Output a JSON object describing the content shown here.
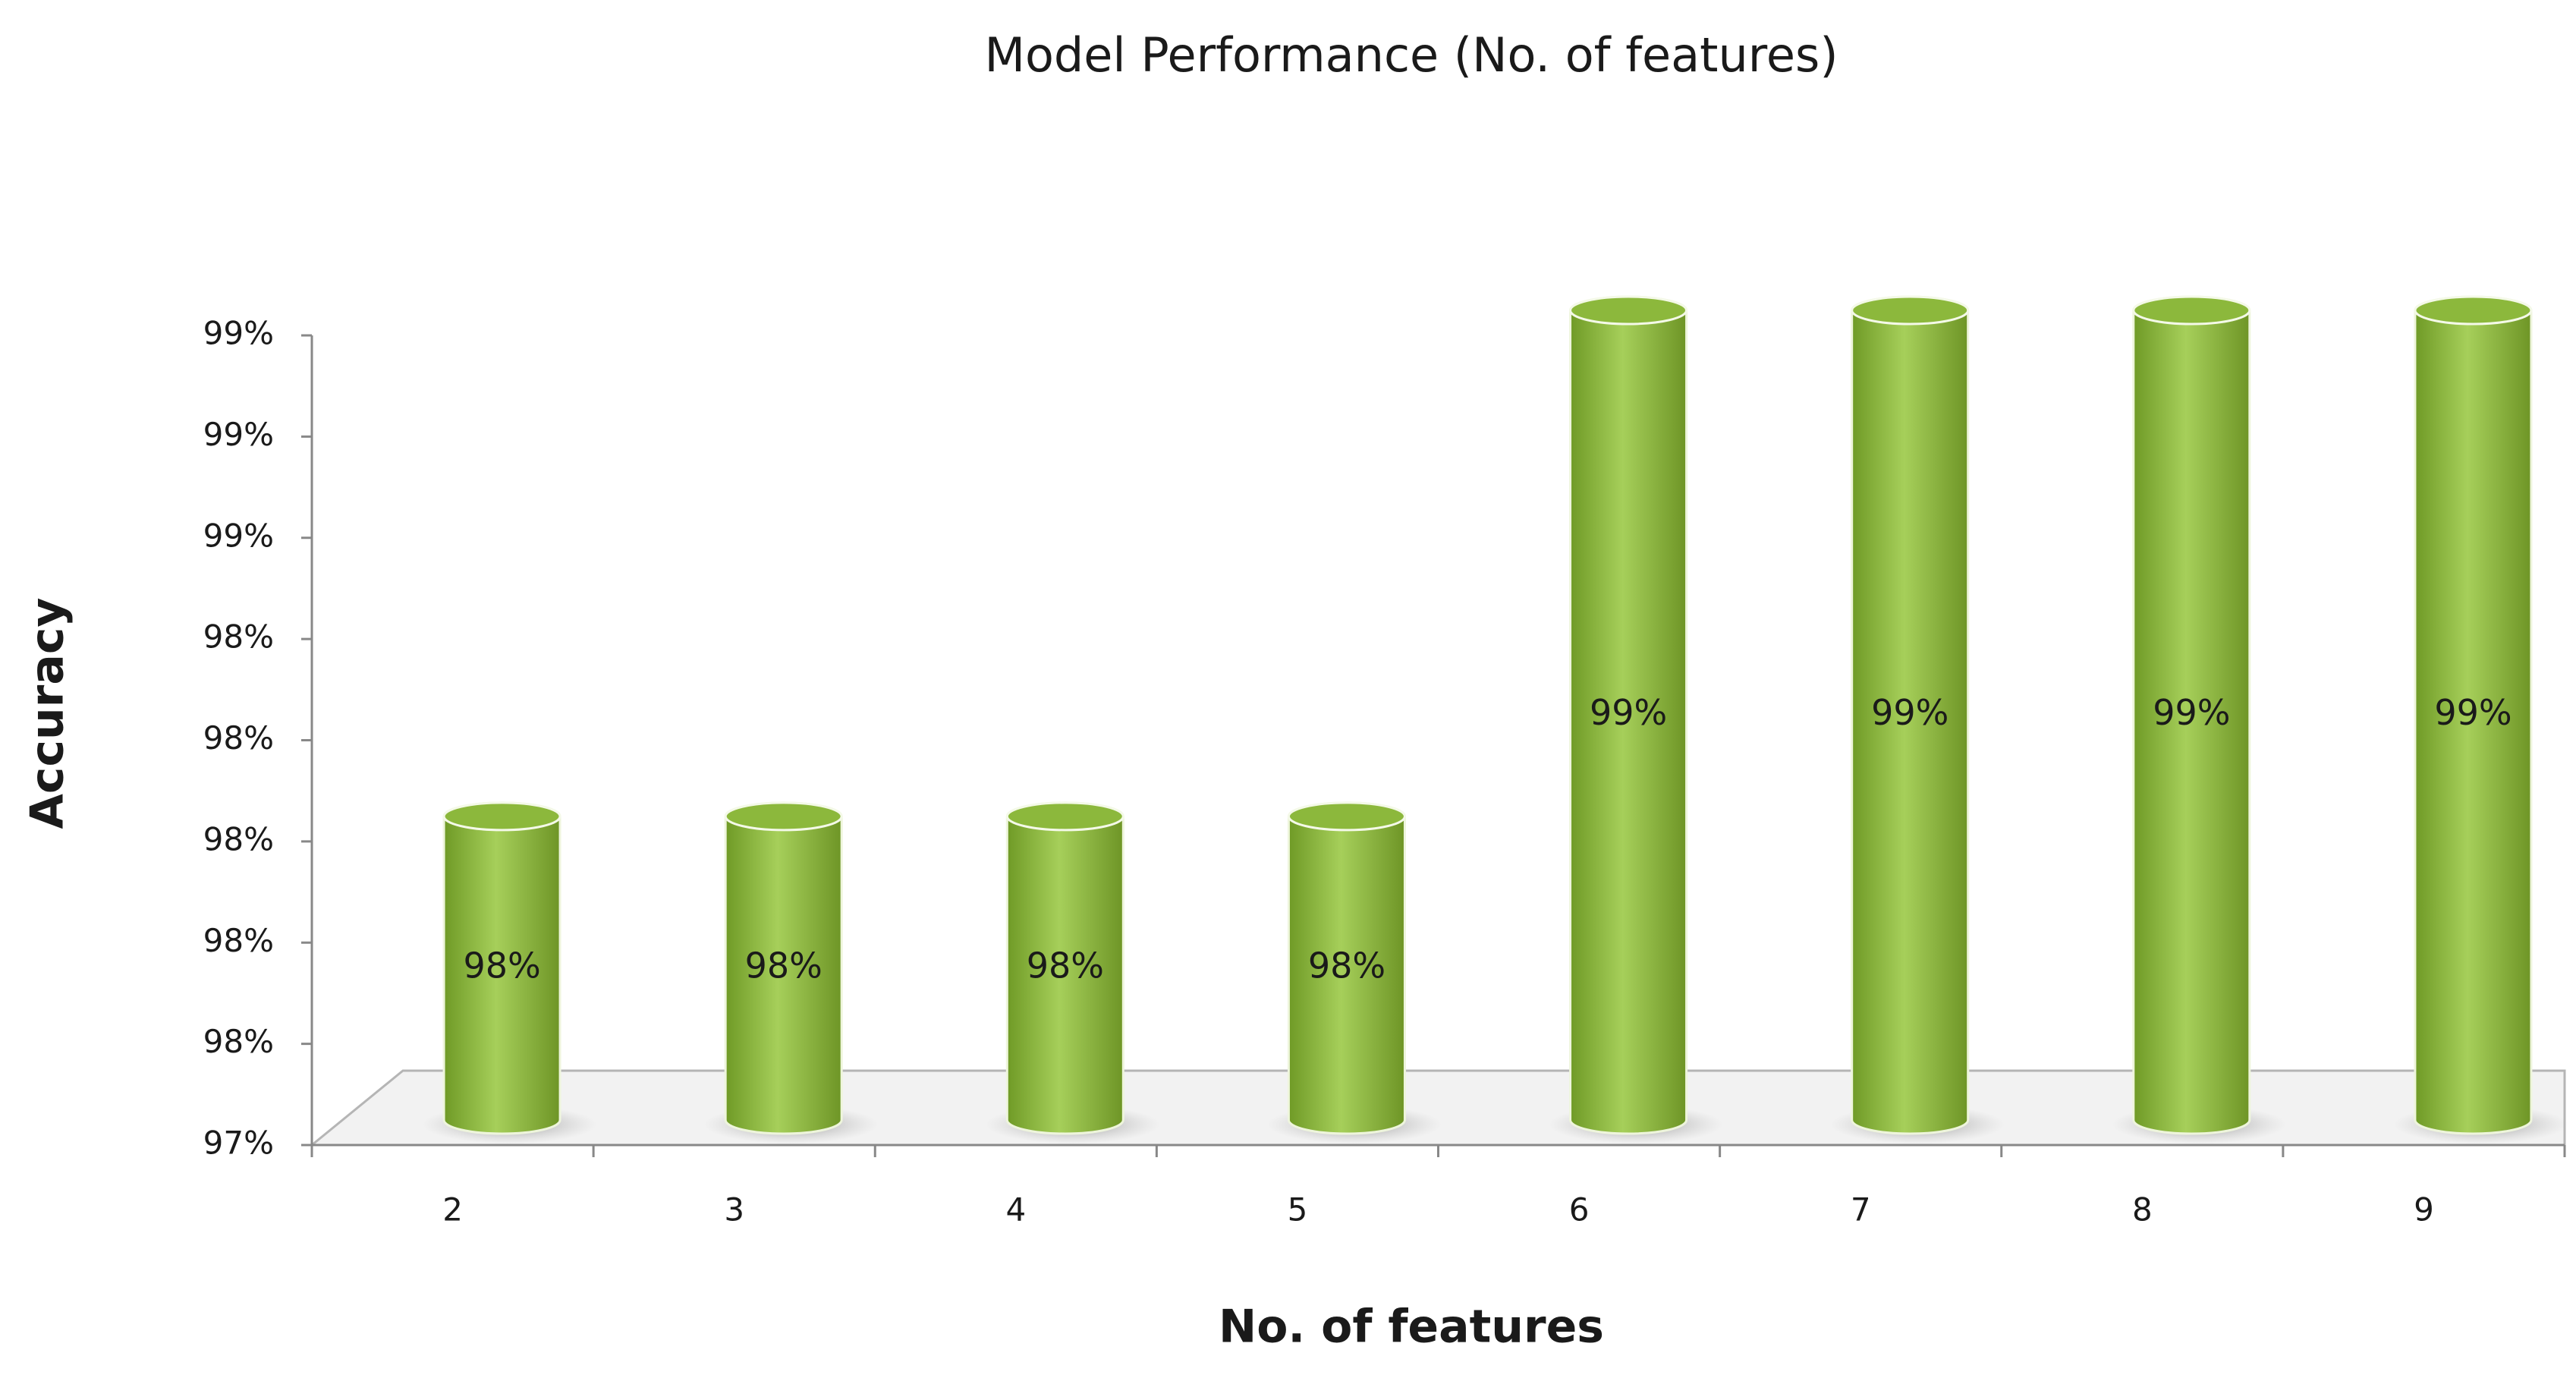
{
  "chart_data": {
    "type": "bar",
    "title": "Model Performance (No. of features)",
    "x_label": "No. of features",
    "y_label": "Accuracy",
    "categories": [
      "2",
      "3",
      "4",
      "5",
      "6",
      "7",
      "8",
      "9"
    ],
    "values": [
      98.0,
      98.0,
      98.0,
      98.0,
      99.0,
      99.0,
      99.0,
      99.0
    ],
    "value_labels": [
      "98%",
      "98%",
      "98%",
      "98%",
      "99%",
      "99%",
      "99%",
      "99%"
    ],
    "color": "#8cb83c",
    "ylim": [
      97.4,
      99.0
    ],
    "yticks": [
      {
        "value": 97.4,
        "label": "97%"
      },
      {
        "value": 97.6,
        "label": "98%"
      },
      {
        "value": 97.8,
        "label": "98%"
      },
      {
        "value": 98.0,
        "label": "98%"
      },
      {
        "value": 98.2,
        "label": "98%"
      },
      {
        "value": 98.4,
        "label": "98%"
      },
      {
        "value": 98.6,
        "label": "99%"
      },
      {
        "value": 98.8,
        "label": "99%"
      },
      {
        "value": 99.0,
        "label": "99%"
      }
    ],
    "grid": false
  }
}
